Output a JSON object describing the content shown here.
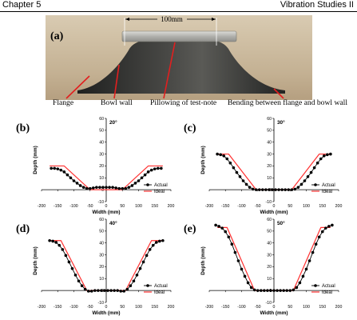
{
  "header": {
    "left": "Chapter 5",
    "right": "Vibration Studies II"
  },
  "photo": {
    "label": "(a)",
    "dimension": "100mm",
    "colors": {
      "background": "#c9b79b",
      "bowl": "#2e2f2d",
      "plate": "#b8b8b4",
      "arrow": "#e21f1f"
    }
  },
  "captions": {
    "flange": "Flange",
    "bowl_wall": "Bowl wall",
    "pillowing": "Pillowing of test-note",
    "bending": "Bending between flange and bowl wall"
  },
  "chart_data": [
    {
      "type": "line",
      "label": "(b)",
      "angle": "20°",
      "xlabel": "Width (mm)",
      "ylabel": "Depth (mm)",
      "xlim": [
        -200,
        200
      ],
      "ylim": [
        -10,
        60
      ],
      "xticks": [
        -200,
        -150,
        -100,
        -50,
        0,
        50,
        100,
        150,
        200
      ],
      "yticks": [
        -10,
        0,
        10,
        20,
        30,
        40,
        50,
        60
      ],
      "legend": "bottom-right",
      "series": [
        {
          "name": "Actual",
          "color": "#000000",
          "marker": "circle",
          "x": [
            -170,
            -160,
            -150,
            -140,
            -130,
            -120,
            -110,
            -100,
            -90,
            -80,
            -70,
            -60,
            -50,
            -40,
            -30,
            -20,
            -10,
            0,
            10,
            20,
            30,
            40,
            50,
            60,
            70,
            80,
            90,
            100,
            110,
            120,
            130,
            140,
            150,
            160,
            170
          ],
          "y": [
            18,
            18,
            17.5,
            16.5,
            15,
            12.5,
            10,
            7.5,
            5.5,
            3.5,
            2,
            1,
            1,
            1.5,
            2,
            2,
            2,
            2,
            2,
            2,
            1.5,
            1,
            1,
            1,
            2,
            3.5,
            5.5,
            7.5,
            10,
            12.5,
            15,
            16.5,
            17.5,
            18,
            18
          ]
        },
        {
          "name": "Ideal",
          "color": "#ff3030",
          "x": [
            -175,
            -130,
            -50,
            50,
            130,
            175
          ],
          "y": [
            20,
            20,
            0,
            0,
            20,
            20
          ]
        }
      ]
    },
    {
      "type": "line",
      "label": "(c)",
      "angle": "30°",
      "xlabel": "Width (mm)",
      "ylabel": "Depth (mm)",
      "xlim": [
        -200,
        200
      ],
      "ylim": [
        -10,
        60
      ],
      "xticks": [
        -200,
        -150,
        -100,
        -50,
        0,
        50,
        100,
        150,
        200
      ],
      "yticks": [
        -10,
        0,
        10,
        20,
        30,
        40,
        50,
        60
      ],
      "legend": "bottom-right",
      "series": [
        {
          "name": "Actual",
          "color": "#000000",
          "marker": "circle",
          "x": [
            -175,
            -165,
            -155,
            -145,
            -135,
            -125,
            -115,
            -105,
            -95,
            -85,
            -75,
            -65,
            -55,
            -45,
            -35,
            -25,
            -15,
            -5,
            5,
            15,
            25,
            35,
            45,
            55,
            65,
            75,
            85,
            95,
            105,
            115,
            125,
            135,
            145,
            155,
            165,
            175
          ],
          "y": [
            30,
            29.5,
            28.5,
            26,
            22.5,
            18.5,
            14.5,
            11,
            7.5,
            4.5,
            2,
            0.5,
            0,
            0,
            0,
            0,
            0,
            0,
            0,
            0,
            0,
            0,
            0,
            0,
            0.5,
            2,
            4.5,
            7.5,
            11,
            14.5,
            18.5,
            22.5,
            26,
            28.5,
            29.5,
            30
          ]
        },
        {
          "name": "Ideal",
          "color": "#ff3030",
          "x": [
            -175,
            -140,
            -55,
            55,
            140,
            175
          ],
          "y": [
            30,
            30,
            0,
            0,
            30,
            30
          ]
        }
      ]
    },
    {
      "type": "line",
      "label": "(d)",
      "angle": "40°",
      "xlabel": "Width (mm)",
      "ylabel": "Depth (mm)",
      "xlim": [
        -200,
        200
      ],
      "ylim": [
        -10,
        60
      ],
      "xticks": [
        -200,
        -150,
        -100,
        -50,
        0,
        50,
        100,
        150,
        200
      ],
      "yticks": [
        -10,
        0,
        10,
        20,
        30,
        40,
        50,
        60
      ],
      "legend": "bottom-right",
      "series": [
        {
          "name": "Actual",
          "color": "#000000",
          "marker": "circle",
          "x": [
            -175,
            -165,
            -155,
            -145,
            -135,
            -125,
            -115,
            -105,
            -95,
            -85,
            -75,
            -65,
            -55,
            -45,
            -35,
            -25,
            -15,
            -5,
            5,
            15,
            25,
            35,
            45,
            55,
            65,
            75,
            85,
            95,
            105,
            115,
            125,
            135,
            145,
            155,
            165,
            175
          ],
          "y": [
            42,
            41.5,
            40.5,
            38,
            34.5,
            29.5,
            24,
            18.5,
            13,
            8,
            4,
            1,
            -0.5,
            -0.5,
            0,
            0,
            0,
            0,
            0,
            0,
            0,
            0,
            -0.5,
            -0.5,
            1,
            4,
            8,
            13,
            18.5,
            24,
            29.5,
            34.5,
            38,
            40.5,
            41.5,
            42
          ]
        },
        {
          "name": "Ideal",
          "color": "#ff3030",
          "x": [
            -175,
            -140,
            -60,
            60,
            140,
            175
          ],
          "y": [
            42,
            42,
            0,
            0,
            42,
            42
          ]
        }
      ]
    },
    {
      "type": "line",
      "label": "(e)",
      "angle": "50°",
      "xlabel": "Width (mm)",
      "ylabel": "Depth (mm)",
      "xlim": [
        -200,
        200
      ],
      "ylim": [
        -10,
        60
      ],
      "xticks": [
        -200,
        -150,
        -100,
        -50,
        0,
        50,
        100,
        150,
        200
      ],
      "yticks": [
        -10,
        0,
        10,
        20,
        30,
        40,
        50,
        60
      ],
      "legend": "bottom-right",
      "series": [
        {
          "name": "Actual",
          "color": "#000000",
          "marker": "circle",
          "x": [
            -180,
            -170,
            -160,
            -150,
            -140,
            -130,
            -120,
            -110,
            -100,
            -90,
            -80,
            -70,
            -60,
            -50,
            -40,
            -30,
            -20,
            -10,
            0,
            10,
            20,
            30,
            40,
            50,
            60,
            70,
            80,
            90,
            100,
            110,
            120,
            130,
            140,
            150,
            160,
            170,
            180
          ],
          "y": [
            55,
            54,
            52.5,
            49.5,
            45,
            39,
            32,
            25,
            18,
            12,
            6.5,
            2.5,
            0.5,
            0,
            0,
            0,
            0,
            0,
            0,
            0,
            0,
            0,
            0,
            0,
            0.5,
            2.5,
            6.5,
            12,
            18,
            25,
            32,
            39,
            45,
            49.5,
            52.5,
            54,
            55
          ]
        },
        {
          "name": "Ideal",
          "color": "#ff3030",
          "x": [
            -175,
            -145,
            -60,
            60,
            145,
            175
          ],
          "y": [
            53,
            53,
            0,
            0,
            53,
            53
          ]
        }
      ]
    }
  ]
}
